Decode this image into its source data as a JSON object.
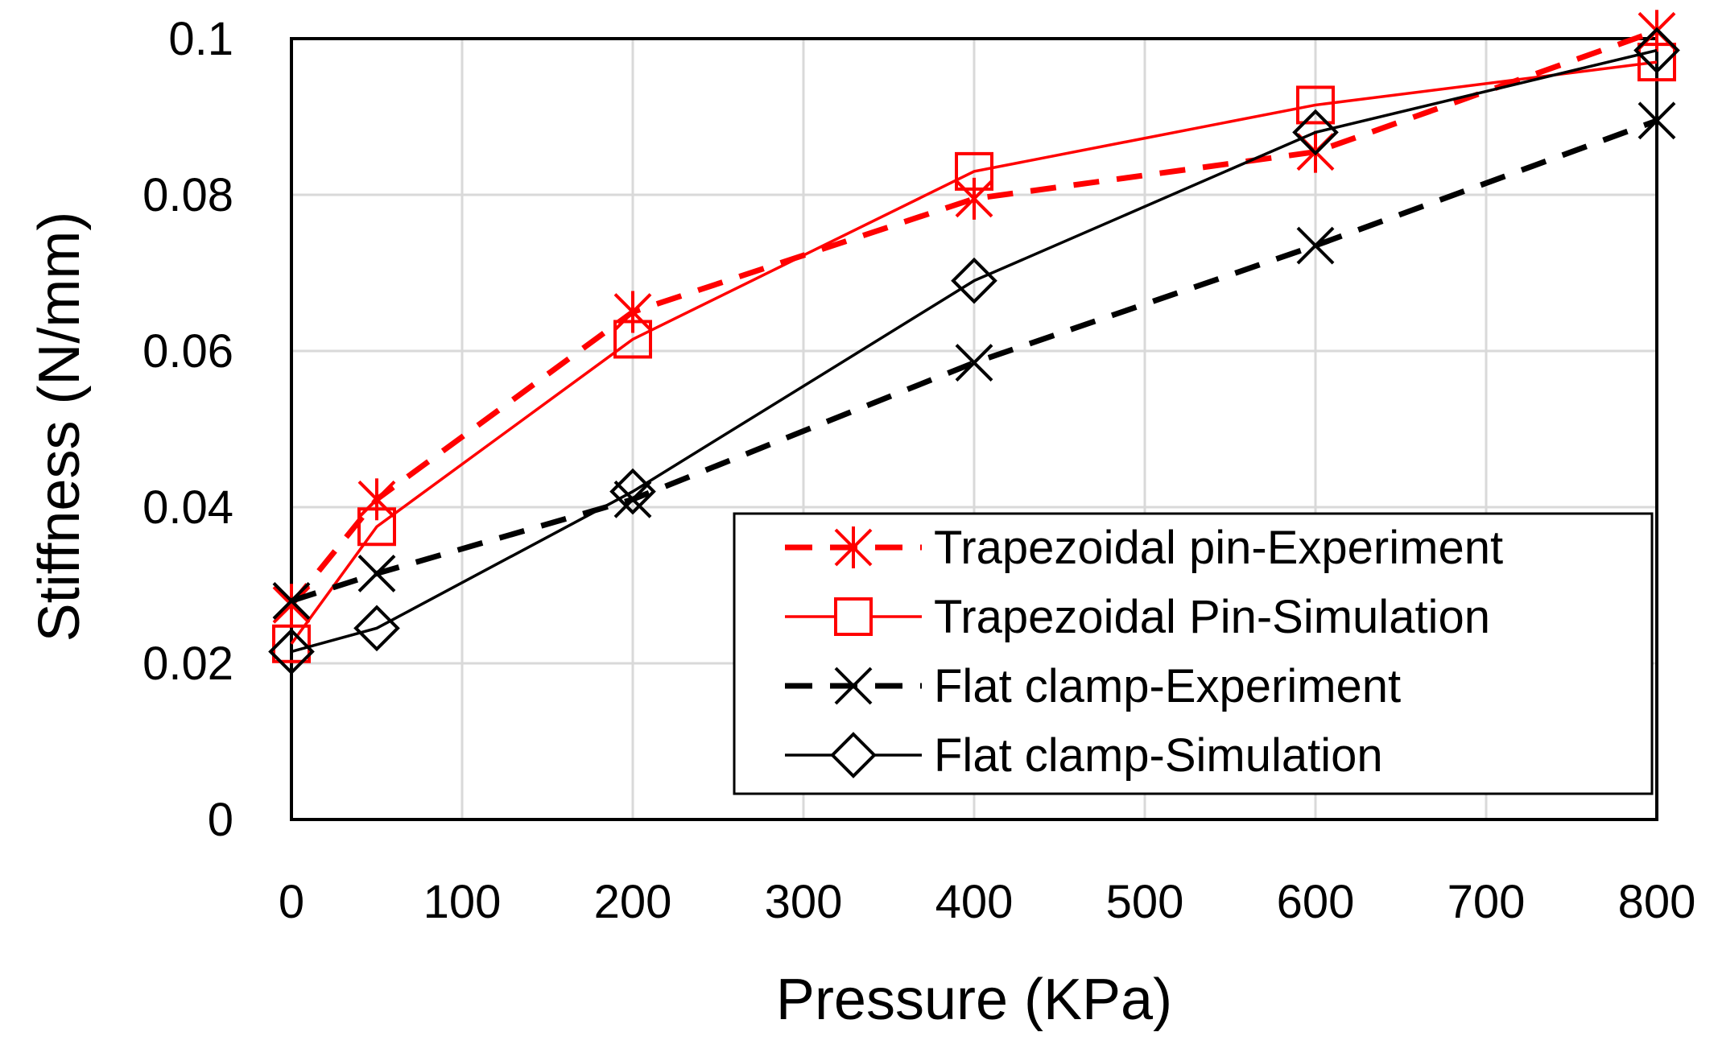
{
  "chart_data": {
    "type": "line",
    "title": "",
    "xlabel": "Pressure (KPa)",
    "ylabel": "Stiffness (N/mm)",
    "xlim": [
      0,
      800
    ],
    "ylim": [
      0,
      0.1
    ],
    "x_ticks": [
      0,
      100,
      200,
      300,
      400,
      500,
      600,
      700,
      800
    ],
    "x_tick_labels": [
      "0",
      "100",
      "200",
      "300",
      "400",
      "500",
      "600",
      "700",
      "800"
    ],
    "y_ticks": [
      0,
      0.02,
      0.04,
      0.06,
      0.08,
      0.1
    ],
    "y_tick_labels": [
      "0",
      "0.02",
      "0.04",
      "0.06",
      "0.08",
      "0.1"
    ],
    "grid": true,
    "legend_position": "bottom-right",
    "series": [
      {
        "name": "Trapezoidal pin-Experiment",
        "color": "#ff0000",
        "line_style": "dashed",
        "marker": "asterisk",
        "x": [
          0,
          50,
          200,
          400,
          600,
          800
        ],
        "y": [
          0.0275,
          0.041,
          0.065,
          0.0795,
          0.0855,
          0.101
        ]
      },
      {
        "name": "Trapezoidal Pin-Simulation",
        "color": "#ff0000",
        "line_style": "solid",
        "marker": "square",
        "x": [
          0,
          50,
          200,
          400,
          600,
          800
        ],
        "y": [
          0.0225,
          0.0375,
          0.0615,
          0.083,
          0.0915,
          0.097
        ]
      },
      {
        "name": "Flat clamp-Experiment",
        "color": "#000000",
        "line_style": "dashed",
        "marker": "x",
        "x": [
          0,
          50,
          200,
          400,
          600,
          800
        ],
        "y": [
          0.028,
          0.0315,
          0.041,
          0.0585,
          0.0735,
          0.0895
        ]
      },
      {
        "name": "Flat clamp-Simulation",
        "color": "#000000",
        "line_style": "solid",
        "marker": "diamond",
        "x": [
          0,
          50,
          200,
          400,
          600,
          800
        ],
        "y": [
          0.0215,
          0.0245,
          0.042,
          0.069,
          0.088,
          0.0985
        ]
      }
    ]
  }
}
